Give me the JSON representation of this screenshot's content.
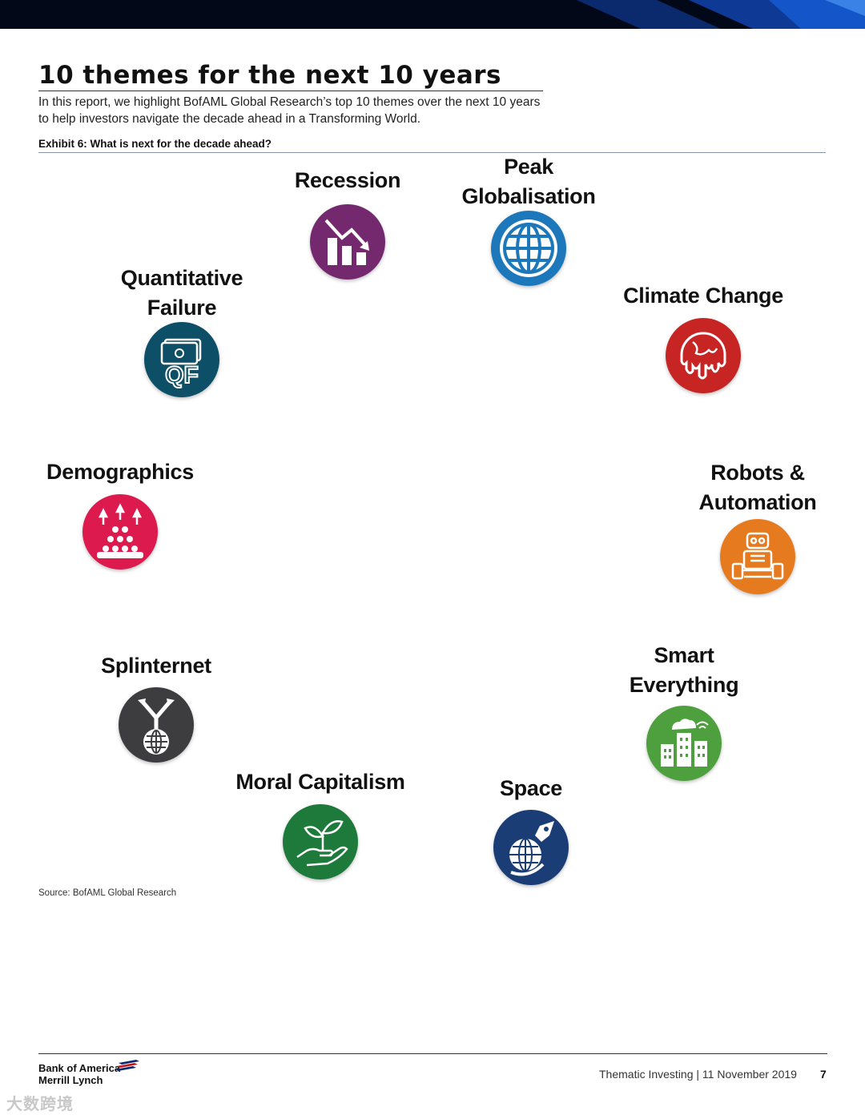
{
  "header": {
    "title": "10 themes for the next 10 years",
    "intro": "In this report, we highlight BofAML Global Research’s top 10 themes over the next 10 years to help investors navigate the decade ahead in a Transforming World.",
    "exhibit": "Exhibit 6: What is next for the decade ahead?"
  },
  "themes": [
    {
      "label": "Recession",
      "icon": "declining-bar-chart-icon",
      "color": "#74296f"
    },
    {
      "label": "Peak\nGlobalisation",
      "icon": "globe-icon",
      "color": "#1c78bb"
    },
    {
      "label": "Quantitative\nFailure",
      "icon": "qf-money-icon",
      "color": "#0d4f66"
    },
    {
      "label": "Climate Change",
      "icon": "melting-earth-icon",
      "color": "#c72424"
    },
    {
      "label": "Demographics",
      "icon": "population-growth-icon",
      "color": "#dc1a4e"
    },
    {
      "label": "Robots &\nAutomation",
      "icon": "robot-icon",
      "color": "#e67a1f"
    },
    {
      "label": "Splinternet",
      "icon": "split-internet-icon",
      "color": "#3d3d3f"
    },
    {
      "label": "Smart\nEverything",
      "icon": "smart-city-icon",
      "color": "#4e9f3d"
    },
    {
      "label": "Moral Capitalism",
      "icon": "hand-plant-icon",
      "color": "#1d7a3a"
    },
    {
      "label": "Space",
      "icon": "rocket-globe-icon",
      "color": "#1a3d75"
    }
  ],
  "source": "Source: BofAML Global Research",
  "footer": {
    "logo_line1": "Bank of America",
    "logo_line2": "Merrill Lynch",
    "text": "Thematic Investing | 11 November 2019",
    "page": "7"
  },
  "watermark": "大数跨境"
}
